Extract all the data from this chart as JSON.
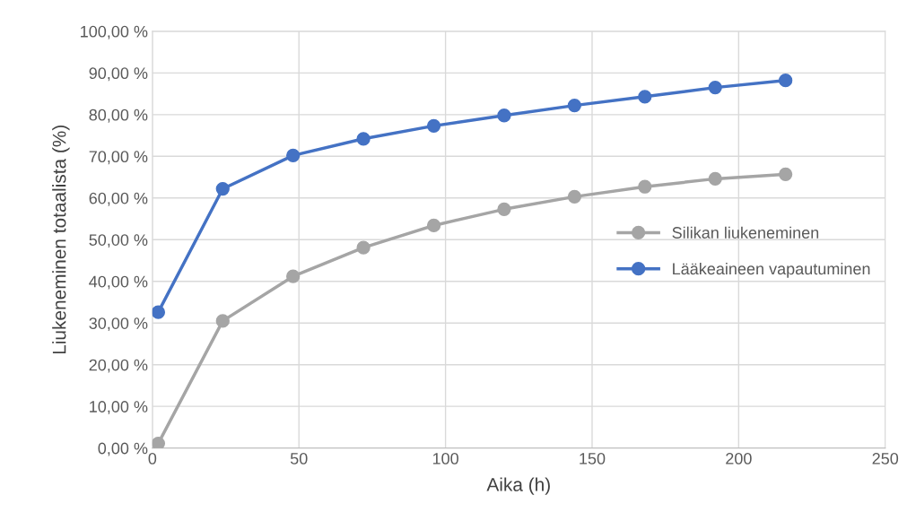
{
  "chart_data": {
    "type": "line",
    "xlabel": "Aika (h)",
    "ylabel": "Liukeneminen totaalista (%)",
    "series": [
      {
        "name": "Silikan liukeneminen",
        "color": "#a5a5a5",
        "x": [
          2,
          24,
          48,
          72,
          96,
          120,
          144,
          168,
          192,
          216
        ],
        "values": [
          1.1,
          30.5,
          41.2,
          48.1,
          53.4,
          57.3,
          60.3,
          62.7,
          64.6,
          65.7
        ]
      },
      {
        "name": "Lääkeaineen vapautuminen",
        "color": "#4472c4",
        "x": [
          2,
          24,
          48,
          72,
          96,
          120,
          144,
          168,
          192,
          216
        ],
        "values": [
          32.6,
          62.2,
          70.2,
          74.2,
          77.3,
          79.8,
          82.2,
          84.3,
          86.5,
          88.2
        ]
      }
    ],
    "xlim": [
      0,
      250
    ],
    "xticks": [
      0,
      50,
      100,
      150,
      200,
      250
    ],
    "ylim": [
      0,
      100
    ],
    "yticks": [
      {
        "value": 0,
        "label": "0,00 %"
      },
      {
        "value": 10,
        "label": "10,00 %"
      },
      {
        "value": 20,
        "label": "20,00 %"
      },
      {
        "value": 30,
        "label": "30,00 %"
      },
      {
        "value": 40,
        "label": "40,00 %"
      },
      {
        "value": 50,
        "label": "50,00 %"
      },
      {
        "value": 60,
        "label": "60,00 %"
      },
      {
        "value": 70,
        "label": "70,00 %"
      },
      {
        "value": 80,
        "label": "80,00 %"
      },
      {
        "value": 90,
        "label": "90,00 %"
      },
      {
        "value": 100,
        "label": "100,00 %"
      }
    ],
    "grid": true,
    "legend": "right",
    "marker": "circle",
    "line_style": "solid"
  }
}
